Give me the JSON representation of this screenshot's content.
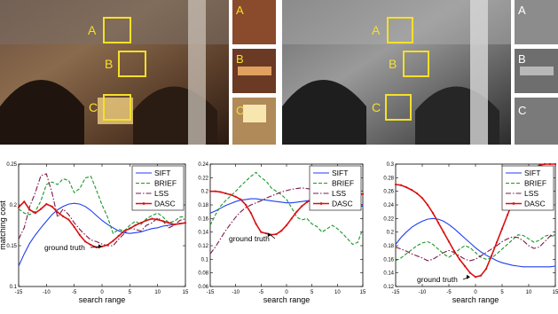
{
  "photos": {
    "color_markers": [
      "A",
      "B",
      "C"
    ],
    "gray_markers": [
      "A",
      "B",
      "C"
    ],
    "color_insets": [
      "A",
      "B",
      "C"
    ],
    "gray_insets": [
      "A",
      "B",
      "C"
    ],
    "marker_color": "#f5e02a"
  },
  "chart_data": [
    {
      "type": "line",
      "xlabel": "search range",
      "ylabel": "matching cost",
      "xlim": [
        -15,
        15
      ],
      "ylim": [
        0.1,
        0.25
      ],
      "xticks": [
        "-15",
        "-10",
        "-5",
        "0",
        "5",
        "10",
        "15"
      ],
      "yticks": [
        "0.1",
        "0.15",
        "0.2",
        "0.25"
      ],
      "annotation": "ground truth",
      "annotation_target": {
        "x": 0,
        "y": 0.149
      },
      "legend_position": "top-right",
      "x": [
        -15,
        -14,
        -13,
        -12,
        -11,
        -10,
        -9,
        -8,
        -7,
        -6,
        -5,
        -4,
        -3,
        -2,
        -1,
        0,
        1,
        2,
        3,
        4,
        5,
        6,
        7,
        8,
        9,
        10,
        11,
        12,
        13,
        14,
        15
      ],
      "series": [
        {
          "name": "SIFT",
          "color": "#1f3ff0",
          "style": "solid",
          "values": [
            0.125,
            0.14,
            0.153,
            0.163,
            0.172,
            0.18,
            0.188,
            0.194,
            0.198,
            0.201,
            0.202,
            0.201,
            0.198,
            0.193,
            0.187,
            0.181,
            0.176,
            0.172,
            0.168,
            0.166,
            0.165,
            0.166,
            0.167,
            0.169,
            0.171,
            0.172,
            0.174,
            0.175,
            0.176,
            0.177,
            0.178
          ]
        },
        {
          "name": "BRIEF",
          "color": "#1a9a2a",
          "style": "dashed",
          "values": [
            0.195,
            0.19,
            0.188,
            0.192,
            0.205,
            0.225,
            0.228,
            0.225,
            0.232,
            0.23,
            0.215,
            0.22,
            0.233,
            0.235,
            0.218,
            0.2,
            0.185,
            0.165,
            0.17,
            0.168,
            0.175,
            0.18,
            0.176,
            0.183,
            0.187,
            0.19,
            0.185,
            0.178,
            0.18,
            0.185,
            0.186
          ]
        },
        {
          "name": "LSS",
          "color": "#7a1a4a",
          "style": "dashdot",
          "values": [
            0.158,
            0.172,
            0.198,
            0.215,
            0.236,
            0.238,
            0.215,
            0.185,
            0.195,
            0.188,
            0.178,
            0.17,
            0.163,
            0.157,
            0.155,
            0.152,
            0.15,
            0.15,
            0.158,
            0.165,
            0.172,
            0.17,
            0.168,
            0.175,
            0.178,
            0.184,
            0.18,
            0.172,
            0.175,
            0.181,
            0.183
          ]
        },
        {
          "name": "DASC",
          "color": "#d81010",
          "style": "solid-marker",
          "values": [
            0.197,
            0.204,
            0.194,
            0.19,
            0.195,
            0.201,
            0.198,
            0.191,
            0.186,
            0.182,
            0.173,
            0.163,
            0.155,
            0.151,
            0.148,
            0.149,
            0.151,
            0.156,
            0.162,
            0.168,
            0.171,
            0.175,
            0.178,
            0.181,
            0.183,
            0.182,
            0.18,
            0.178,
            0.176,
            0.177,
            0.178
          ]
        }
      ]
    },
    {
      "type": "line",
      "xlabel": "search range",
      "ylabel": "",
      "xlim": [
        -15,
        15
      ],
      "ylim": [
        0.06,
        0.24
      ],
      "xticks": [
        "-15",
        "-10",
        "-5",
        "0",
        "5",
        "10",
        "15"
      ],
      "yticks": [
        "0.06",
        "0.08",
        "0.1",
        "0.12",
        "0.14",
        "0.16",
        "0.18",
        "0.2",
        "0.22",
        "0.24"
      ],
      "annotation": "ground truth",
      "annotation_target": {
        "x": -3,
        "y": 0.136
      },
      "legend_position": "top-right",
      "x": [
        -15,
        -14,
        -13,
        -12,
        -11,
        -10,
        -9,
        -8,
        -7,
        -6,
        -5,
        -4,
        -3,
        -2,
        -1,
        0,
        1,
        2,
        3,
        4,
        5,
        6,
        7,
        8,
        9,
        10,
        11,
        12,
        13,
        14,
        15
      ],
      "series": [
        {
          "name": "SIFT",
          "color": "#1f3ff0",
          "style": "solid",
          "values": [
            0.168,
            0.171,
            0.175,
            0.179,
            0.182,
            0.185,
            0.187,
            0.188,
            0.189,
            0.189,
            0.188,
            0.187,
            0.186,
            0.185,
            0.184,
            0.183,
            0.183,
            0.184,
            0.185,
            0.186,
            0.187,
            0.188,
            0.188,
            0.187,
            0.186,
            0.184,
            0.182,
            0.18,
            0.179,
            0.178,
            0.178
          ]
        },
        {
          "name": "BRIEF",
          "color": "#1a9a2a",
          "style": "dashed",
          "values": [
            0.15,
            0.165,
            0.178,
            0.186,
            0.193,
            0.2,
            0.208,
            0.215,
            0.222,
            0.228,
            0.22,
            0.215,
            0.205,
            0.2,
            0.195,
            0.188,
            0.176,
            0.162,
            0.158,
            0.16,
            0.152,
            0.148,
            0.14,
            0.145,
            0.15,
            0.145,
            0.138,
            0.13,
            0.122,
            0.125,
            0.145
          ]
        },
        {
          "name": "LSS",
          "color": "#7a1a4a",
          "style": "dashdot",
          "values": [
            0.108,
            0.118,
            0.13,
            0.142,
            0.152,
            0.162,
            0.17,
            0.176,
            0.18,
            0.183,
            0.186,
            0.19,
            0.193,
            0.196,
            0.199,
            0.201,
            0.203,
            0.204,
            0.205,
            0.204,
            0.203,
            0.202,
            0.2,
            0.198,
            0.196,
            0.193,
            0.19,
            0.187,
            0.185,
            0.182,
            0.18
          ]
        },
        {
          "name": "DASC",
          "color": "#d81010",
          "style": "solid-marker",
          "values": [
            0.2,
            0.2,
            0.199,
            0.197,
            0.195,
            0.192,
            0.188,
            0.18,
            0.168,
            0.152,
            0.14,
            0.138,
            0.136,
            0.137,
            0.142,
            0.15,
            0.16,
            0.17,
            0.178,
            0.184,
            0.188,
            0.19,
            0.192,
            0.193,
            0.193,
            0.194,
            0.194,
            0.195,
            0.195,
            0.195,
            0.196
          ]
        }
      ]
    },
    {
      "type": "line",
      "xlabel": "search range",
      "ylabel": "",
      "xlim": [
        -15,
        15
      ],
      "ylim": [
        0.12,
        0.3
      ],
      "xticks": [
        "-15",
        "-10",
        "-5",
        "0",
        "5",
        "10",
        "15"
      ],
      "yticks": [
        "0.12",
        "0.14",
        "0.16",
        "0.18",
        "0.2",
        "0.22",
        "0.24",
        "0.26",
        "0.28",
        "0.3"
      ],
      "annotation": "ground truth",
      "annotation_target": {
        "x": -1,
        "y": 0.134
      },
      "legend_position": "top-right",
      "x": [
        -15,
        -14,
        -13,
        -12,
        -11,
        -10,
        -9,
        -8,
        -7,
        -6,
        -5,
        -4,
        -3,
        -2,
        -1,
        0,
        1,
        2,
        3,
        4,
        5,
        6,
        7,
        8,
        9,
        10,
        11,
        12,
        13,
        14,
        15
      ],
      "series": [
        {
          "name": "SIFT",
          "color": "#1f3ff0",
          "style": "solid",
          "values": [
            0.182,
            0.192,
            0.2,
            0.207,
            0.212,
            0.216,
            0.219,
            0.22,
            0.219,
            0.216,
            0.211,
            0.205,
            0.198,
            0.191,
            0.184,
            0.177,
            0.171,
            0.166,
            0.162,
            0.158,
            0.155,
            0.153,
            0.151,
            0.15,
            0.149,
            0.149,
            0.149,
            0.149,
            0.149,
            0.149,
            0.15
          ]
        },
        {
          "name": "BRIEF",
          "color": "#1a9a2a",
          "style": "dashed",
          "values": [
            0.158,
            0.162,
            0.168,
            0.174,
            0.18,
            0.184,
            0.186,
            0.182,
            0.175,
            0.168,
            0.163,
            0.168,
            0.175,
            0.18,
            0.177,
            0.17,
            0.163,
            0.16,
            0.162,
            0.168,
            0.175,
            0.182,
            0.189,
            0.196,
            0.195,
            0.19,
            0.185,
            0.188,
            0.194,
            0.196,
            0.192
          ]
        },
        {
          "name": "LSS",
          "color": "#7a1a4a",
          "style": "dashdot",
          "values": [
            0.178,
            0.175,
            0.172,
            0.168,
            0.165,
            0.162,
            0.158,
            0.16,
            0.165,
            0.17,
            0.173,
            0.17,
            0.165,
            0.16,
            0.158,
            0.16,
            0.165,
            0.17,
            0.175,
            0.18,
            0.186,
            0.19,
            0.193,
            0.192,
            0.187,
            0.18,
            0.176,
            0.178,
            0.186,
            0.194,
            0.196
          ]
        },
        {
          "name": "DASC",
          "color": "#d81010",
          "style": "solid-marker",
          "values": [
            0.27,
            0.269,
            0.266,
            0.262,
            0.257,
            0.25,
            0.24,
            0.228,
            0.214,
            0.2,
            0.186,
            0.172,
            0.16,
            0.15,
            0.14,
            0.134,
            0.136,
            0.146,
            0.165,
            0.185,
            0.205,
            0.225,
            0.245,
            0.262,
            0.276,
            0.287,
            0.294,
            0.298,
            0.3,
            0.3,
            0.3
          ]
        }
      ]
    }
  ]
}
